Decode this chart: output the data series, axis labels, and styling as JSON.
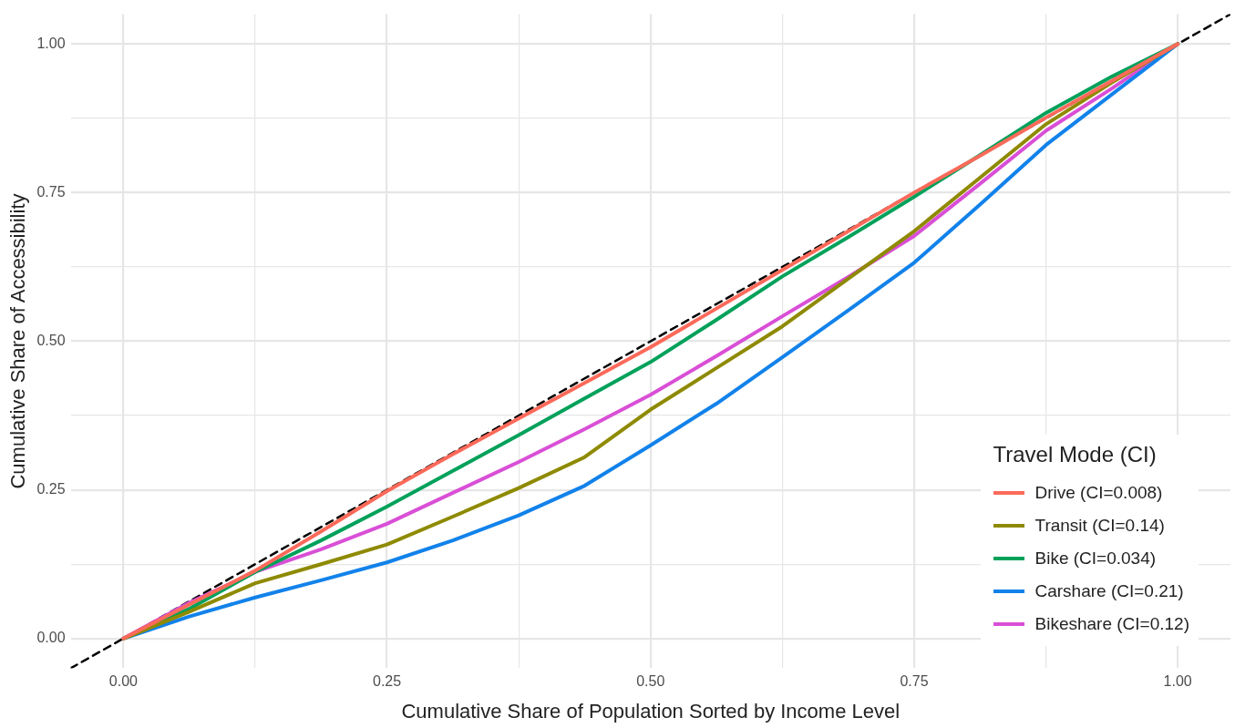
{
  "chart_data": {
    "type": "line",
    "xlabel": "Cumulative Share of Population Sorted by Income Level",
    "ylabel": "Cumulative Share of Accessibility",
    "legend_title": "Travel Mode (CI)",
    "legend": "bottom right",
    "grid": true,
    "marker": "none",
    "xlim": [
      -0.05,
      1.05
    ],
    "ylim": [
      -0.05,
      1.05
    ],
    "xticks": [
      {
        "value": 0,
        "label": "0.00"
      },
      {
        "value": 0.125,
        "label": null
      },
      {
        "value": 0.25,
        "label": "0.25"
      },
      {
        "value": 0.375,
        "label": null
      },
      {
        "value": 0.5,
        "label": "0.50"
      },
      {
        "value": 0.625,
        "label": null
      },
      {
        "value": 0.75,
        "label": "0.75"
      },
      {
        "value": 0.875,
        "label": null
      },
      {
        "value": 1,
        "label": "1.00"
      }
    ],
    "yticks": [
      {
        "value": 0,
        "label": "0.00"
      },
      {
        "value": 0.125,
        "label": null
      },
      {
        "value": 0.25,
        "label": "0.25"
      },
      {
        "value": 0.375,
        "label": null
      },
      {
        "value": 0.5,
        "label": "0.50"
      },
      {
        "value": 0.625,
        "label": null
      },
      {
        "value": 0.75,
        "label": "0.75"
      },
      {
        "value": 0.875,
        "label": null
      },
      {
        "value": 1,
        "label": "1.00"
      }
    ],
    "x": [
      0,
      0.0625,
      0.125,
      0.1875,
      0.25,
      0.3125,
      0.375,
      0.4375,
      0.5,
      0.5625,
      0.625,
      0.6875,
      0.75,
      0.8125,
      0.875,
      0.9375,
      1
    ],
    "series": [
      {
        "name": "Drive (CI=0.008)",
        "color": "#fc6a5a",
        "values": [
          0,
          0.057,
          0.114,
          0.18,
          0.248,
          0.31,
          0.37,
          0.43,
          0.49,
          0.555,
          0.62,
          0.685,
          0.75,
          0.812,
          0.876,
          0.938,
          1
        ]
      },
      {
        "name": "Transit (CI=0.14)",
        "color": "#8e8a00",
        "values": [
          0,
          0.045,
          0.093,
          0.125,
          0.158,
          0.205,
          0.253,
          0.305,
          0.385,
          0.455,
          0.525,
          0.605,
          0.685,
          0.775,
          0.865,
          0.935,
          1
        ]
      },
      {
        "name": "Bike (CI=0.034)",
        "color": "#00a15a",
        "values": [
          0,
          0.05,
          0.112,
          0.165,
          0.222,
          0.282,
          0.342,
          0.404,
          0.465,
          0.536,
          0.609,
          0.675,
          0.743,
          0.813,
          0.884,
          0.945,
          1
        ]
      },
      {
        "name": "Carshare (CI=0.21)",
        "color": "#1282ea",
        "values": [
          0,
          0.037,
          0.069,
          0.098,
          0.128,
          0.165,
          0.207,
          0.257,
          0.325,
          0.395,
          0.473,
          0.552,
          0.632,
          0.73,
          0.83,
          0.915,
          1
        ]
      },
      {
        "name": "Bikeshare (CI=0.12)",
        "color": "#d94fd6",
        "values": [
          0,
          0.06,
          0.112,
          0.15,
          0.193,
          0.245,
          0.297,
          0.352,
          0.41,
          0.475,
          0.542,
          0.608,
          0.677,
          0.765,
          0.854,
          0.925,
          1
        ]
      },
      {
        "color": "#000000",
        "line_style": "dashed",
        "x": [
          -0.05,
          1.05
        ],
        "values": [
          -0.05,
          1.05
        ]
      }
    ]
  }
}
